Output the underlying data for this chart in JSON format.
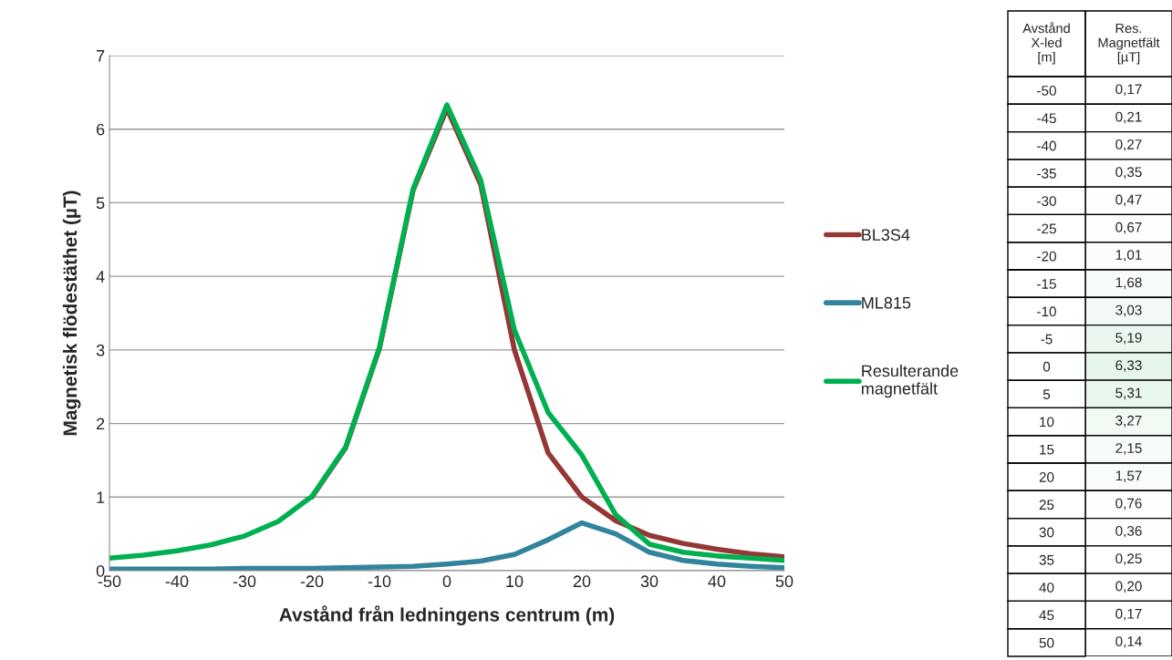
{
  "chart_data": [
    {
      "type": "line",
      "xlabel": "Avstånd från ledningens centrum (m)",
      "ylabel": "Magnetisk flödestäthet (µT)",
      "x": [
        -50,
        -45,
        -40,
        -35,
        -30,
        -25,
        -20,
        -15,
        -10,
        -5,
        0,
        5,
        10,
        15,
        20,
        25,
        30,
        35,
        40,
        45,
        50
      ],
      "series": [
        {
          "name": "BL3S4",
          "color": "#953735",
          "values": [
            null,
            null,
            null,
            null,
            null,
            null,
            1.0,
            1.67,
            3.02,
            5.17,
            6.28,
            5.25,
            3.0,
            1.6,
            1.0,
            0.68,
            0.48,
            0.37,
            0.29,
            0.23,
            0.19
          ]
        },
        {
          "name": "ML815",
          "color": "#31849b",
          "values": [
            0.02,
            0.02,
            0.02,
            0.02,
            0.03,
            0.03,
            0.03,
            0.04,
            0.05,
            0.06,
            0.09,
            0.13,
            0.22,
            0.42,
            0.65,
            0.5,
            0.25,
            0.14,
            0.09,
            0.06,
            0.04
          ]
        },
        {
          "name": "Resulterande\nmagnetfält",
          "color": "#00b050",
          "values": [
            0.17,
            0.21,
            0.27,
            0.35,
            0.47,
            0.67,
            1.01,
            1.68,
            3.03,
            5.19,
            6.33,
            5.31,
            3.27,
            2.15,
            1.57,
            0.76,
            0.36,
            0.25,
            0.2,
            0.17,
            0.14
          ]
        }
      ],
      "xlim": [
        -50,
        50
      ],
      "xticks": [
        -50,
        -40,
        -30,
        -20,
        -10,
        0,
        10,
        20,
        30,
        40,
        50
      ],
      "ylim": [
        0,
        7
      ],
      "yticks": [
        0,
        1,
        2,
        3,
        4,
        5,
        6,
        7
      ],
      "grid": "y",
      "legend": "right",
      "line_style": "solid",
      "marker": "none"
    },
    {
      "type": "heatmap",
      "ylabel": "Avstånd\nX-led\n[m]",
      "categories": [
        "Res.\nMagnetfält\n[µT]"
      ],
      "y_categories": [
        "-50",
        "-45",
        "-40",
        "-35",
        "-30",
        "-25",
        "-20",
        "-15",
        "-10",
        "-5",
        "0",
        "5",
        "10",
        "15",
        "20",
        "25",
        "30",
        "35",
        "40",
        "45",
        "50"
      ],
      "cells": [
        [
          0.17
        ],
        [
          0.21
        ],
        [
          0.27
        ],
        [
          0.35
        ],
        [
          0.47
        ],
        [
          0.67
        ],
        [
          1.01
        ],
        [
          1.68
        ],
        [
          3.03
        ],
        [
          5.19
        ],
        [
          6.33
        ],
        [
          5.31
        ],
        [
          3.27
        ],
        [
          2.15
        ],
        [
          1.57
        ],
        [
          0.76
        ],
        [
          0.36
        ],
        [
          0.25
        ],
        [
          0.2
        ],
        [
          0.17
        ],
        [
          0.14
        ]
      ],
      "cell_labels": [
        [
          "0,17"
        ],
        [
          "0,21"
        ],
        [
          "0,27"
        ],
        [
          "0,35"
        ],
        [
          "0,47"
        ],
        [
          "0,67"
        ],
        [
          "1,01"
        ],
        [
          "1,68"
        ],
        [
          "3,03"
        ],
        [
          "5,19"
        ],
        [
          "6,33"
        ],
        [
          "5,31"
        ],
        [
          "3,27"
        ],
        [
          "2,15"
        ],
        [
          "1,57"
        ],
        [
          "0,76"
        ],
        [
          "0,36"
        ],
        [
          "0,25"
        ],
        [
          "0,20"
        ],
        [
          "0,17"
        ],
        [
          "0,14"
        ]
      ]
    }
  ]
}
